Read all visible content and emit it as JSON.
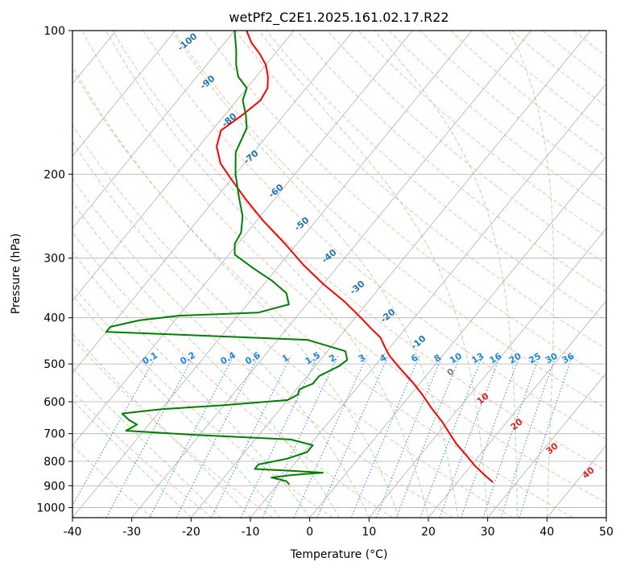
{
  "chart_data": {
    "type": "line",
    "title": "wetPf2_C2E1.2025.161.02.17.R22",
    "xlabel": "Temperature (°C)",
    "ylabel": "Pressure (hPa)",
    "xlim": [
      -40,
      50
    ],
    "ylim": [
      1050,
      100
    ],
    "y_scale": "log",
    "grid": true,
    "x_ticks": [
      -40,
      -30,
      -20,
      -10,
      0,
      10,
      20,
      30,
      40,
      50
    ],
    "y_ticks": [
      100,
      200,
      300,
      400,
      500,
      600,
      700,
      800,
      900,
      1000
    ],
    "series": [
      {
        "role": "temperature",
        "color": "#ff0000",
        "points": [
          {
            "p": 885,
            "t": 26.0
          },
          {
            "p": 860,
            "t": 24.0
          },
          {
            "p": 815,
            "t": 20.5
          },
          {
            "p": 780,
            "t": 18.0
          },
          {
            "p": 735,
            "t": 14.5
          },
          {
            "p": 700,
            "t": 12.0
          },
          {
            "p": 660,
            "t": 9.0
          },
          {
            "p": 620,
            "t": 5.5
          },
          {
            "p": 580,
            "t": 2.0
          },
          {
            "p": 545,
            "t": -1.5
          },
          {
            "p": 510,
            "t": -5.5
          },
          {
            "p": 480,
            "t": -9.0
          },
          {
            "p": 460,
            "t": -11.0
          },
          {
            "p": 440,
            "t": -13.0
          },
          {
            "p": 420,
            "t": -16.0
          },
          {
            "p": 400,
            "t": -19.0
          },
          {
            "p": 370,
            "t": -24.0
          },
          {
            "p": 340,
            "t": -30.0
          },
          {
            "p": 310,
            "t": -36.0
          },
          {
            "p": 280,
            "t": -42.0
          },
          {
            "p": 250,
            "t": -49.0
          },
          {
            "p": 225,
            "t": -55.0
          },
          {
            "p": 205,
            "t": -60.0
          },
          {
            "p": 190,
            "t": -64.0
          },
          {
            "p": 175,
            "t": -67.0
          },
          {
            "p": 162,
            "t": -68.5
          },
          {
            "p": 150,
            "t": -67.0
          },
          {
            "p": 140,
            "t": -66.0
          },
          {
            "p": 132,
            "t": -66.5
          },
          {
            "p": 125,
            "t": -68.0
          },
          {
            "p": 118,
            "t": -70.0
          },
          {
            "p": 112,
            "t": -72.5
          },
          {
            "p": 106,
            "t": -75.5
          },
          {
            "p": 100,
            "t": -78.0
          }
        ]
      },
      {
        "role": "dewpoint",
        "color": "#008000",
        "points": [
          {
            "p": 895,
            "t": -8.0
          },
          {
            "p": 880,
            "t": -9.0
          },
          {
            "p": 865,
            "t": -12.0
          },
          {
            "p": 855,
            "t": -9.0
          },
          {
            "p": 845,
            "t": -4.0
          },
          {
            "p": 838,
            "t": -9.0
          },
          {
            "p": 830,
            "t": -16.0
          },
          {
            "p": 812,
            "t": -16.0
          },
          {
            "p": 790,
            "t": -12.0
          },
          {
            "p": 765,
            "t": -9.5
          },
          {
            "p": 740,
            "t": -9.5
          },
          {
            "p": 720,
            "t": -14.0
          },
          {
            "p": 705,
            "t": -30.0
          },
          {
            "p": 690,
            "t": -43.0
          },
          {
            "p": 670,
            "t": -42.0
          },
          {
            "p": 655,
            "t": -44.0
          },
          {
            "p": 635,
            "t": -46.0
          },
          {
            "p": 622,
            "t": -40.0
          },
          {
            "p": 610,
            "t": -30.0
          },
          {
            "p": 595,
            "t": -20.0
          },
          {
            "p": 580,
            "t": -19.0
          },
          {
            "p": 565,
            "t": -19.5
          },
          {
            "p": 550,
            "t": -18.0
          },
          {
            "p": 530,
            "t": -18.0
          },
          {
            "p": 505,
            "t": -16.0
          },
          {
            "p": 490,
            "t": -15.5
          },
          {
            "p": 470,
            "t": -17.0
          },
          {
            "p": 445,
            "t": -25.0
          },
          {
            "p": 428,
            "t": -60.0
          },
          {
            "p": 418,
            "t": -60.0
          },
          {
            "p": 405,
            "t": -56.0
          },
          {
            "p": 396,
            "t": -50.0
          },
          {
            "p": 390,
            "t": -37.0
          },
          {
            "p": 375,
            "t": -33.0
          },
          {
            "p": 355,
            "t": -35.0
          },
          {
            "p": 335,
            "t": -39.0
          },
          {
            "p": 315,
            "t": -44.0
          },
          {
            "p": 295,
            "t": -49.0
          },
          {
            "p": 280,
            "t": -50.5
          },
          {
            "p": 265,
            "t": -51.0
          },
          {
            "p": 245,
            "t": -53.0
          },
          {
            "p": 225,
            "t": -56.0
          },
          {
            "p": 200,
            "t": -60.0
          },
          {
            "p": 180,
            "t": -63.0
          },
          {
            "p": 160,
            "t": -64.5
          },
          {
            "p": 150,
            "t": -66.5
          },
          {
            "p": 140,
            "t": -69.0
          },
          {
            "p": 132,
            "t": -70.0
          },
          {
            "p": 125,
            "t": -73.0
          },
          {
            "p": 118,
            "t": -75.0
          },
          {
            "p": 110,
            "t": -77.0
          },
          {
            "p": 100,
            "t": -80.0
          }
        ]
      }
    ],
    "dry_adiabat_label_values": [
      -100,
      -90,
      -80,
      -70,
      -60,
      -50,
      -40,
      -30,
      -20,
      -10,
      0,
      10,
      20,
      30,
      40
    ],
    "mixing_ratio_label_values": [
      "0.1",
      "0.2",
      "0.4",
      "0.6",
      "1",
      "1.5",
      "2",
      "3",
      "4",
      "6",
      "8",
      "10",
      "13",
      "16",
      "20",
      "25",
      "30",
      "36"
    ],
    "colors": {
      "isotherm": "#b0b0b0",
      "dry_adiabat": "#ffb49a",
      "moist_adiabat": "#a8d8a0",
      "mixing_ratio": "#1e88e5",
      "label_blue": "#1f77b4",
      "label_gray": "#808080",
      "label_red": "#d62728"
    }
  }
}
